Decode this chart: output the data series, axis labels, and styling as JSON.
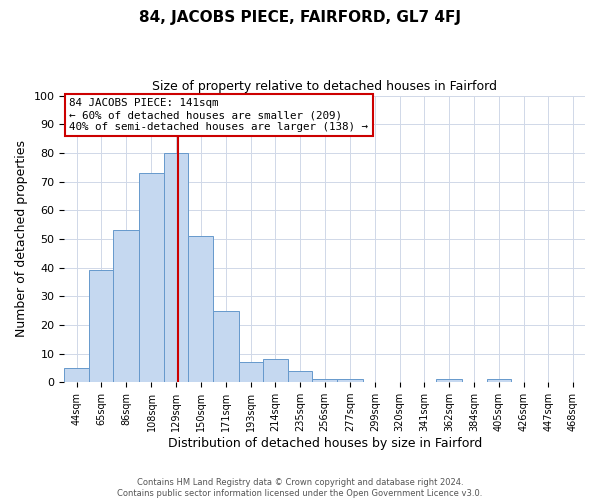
{
  "title": "84, JACOBS PIECE, FAIRFORD, GL7 4FJ",
  "subtitle": "Size of property relative to detached houses in Fairford",
  "xlabel": "Distribution of detached houses by size in Fairford",
  "ylabel": "Number of detached properties",
  "bar_labels": [
    "44sqm",
    "65sqm",
    "86sqm",
    "108sqm",
    "129sqm",
    "150sqm",
    "171sqm",
    "193sqm",
    "214sqm",
    "235sqm",
    "256sqm",
    "277sqm",
    "299sqm",
    "320sqm",
    "341sqm",
    "362sqm",
    "384sqm",
    "405sqm",
    "426sqm",
    "447sqm",
    "468sqm"
  ],
  "bar_values": [
    5,
    39,
    53,
    73,
    80,
    51,
    25,
    7,
    8,
    4,
    1,
    1,
    0,
    0,
    0,
    1,
    0,
    1,
    0,
    0,
    0
  ],
  "bar_color": "#c5d8f0",
  "bar_edge_color": "#6699cc",
  "ylim": [
    0,
    100
  ],
  "property_line_x": 141,
  "bin_edges": [
    44,
    65,
    86,
    108,
    129,
    150,
    171,
    193,
    214,
    235,
    256,
    277,
    299,
    320,
    341,
    362,
    384,
    405,
    426,
    447,
    468
  ],
  "annotation_title": "84 JACOBS PIECE: 141sqm",
  "annotation_line1": "← 60% of detached houses are smaller (209)",
  "annotation_line2": "40% of semi-detached houses are larger (138) →",
  "annotation_box_color": "#cc0000",
  "footer_line1": "Contains HM Land Registry data © Crown copyright and database right 2024.",
  "footer_line2": "Contains public sector information licensed under the Open Government Licence v3.0.",
  "background_color": "#ffffff",
  "grid_color": "#d0d8e8"
}
